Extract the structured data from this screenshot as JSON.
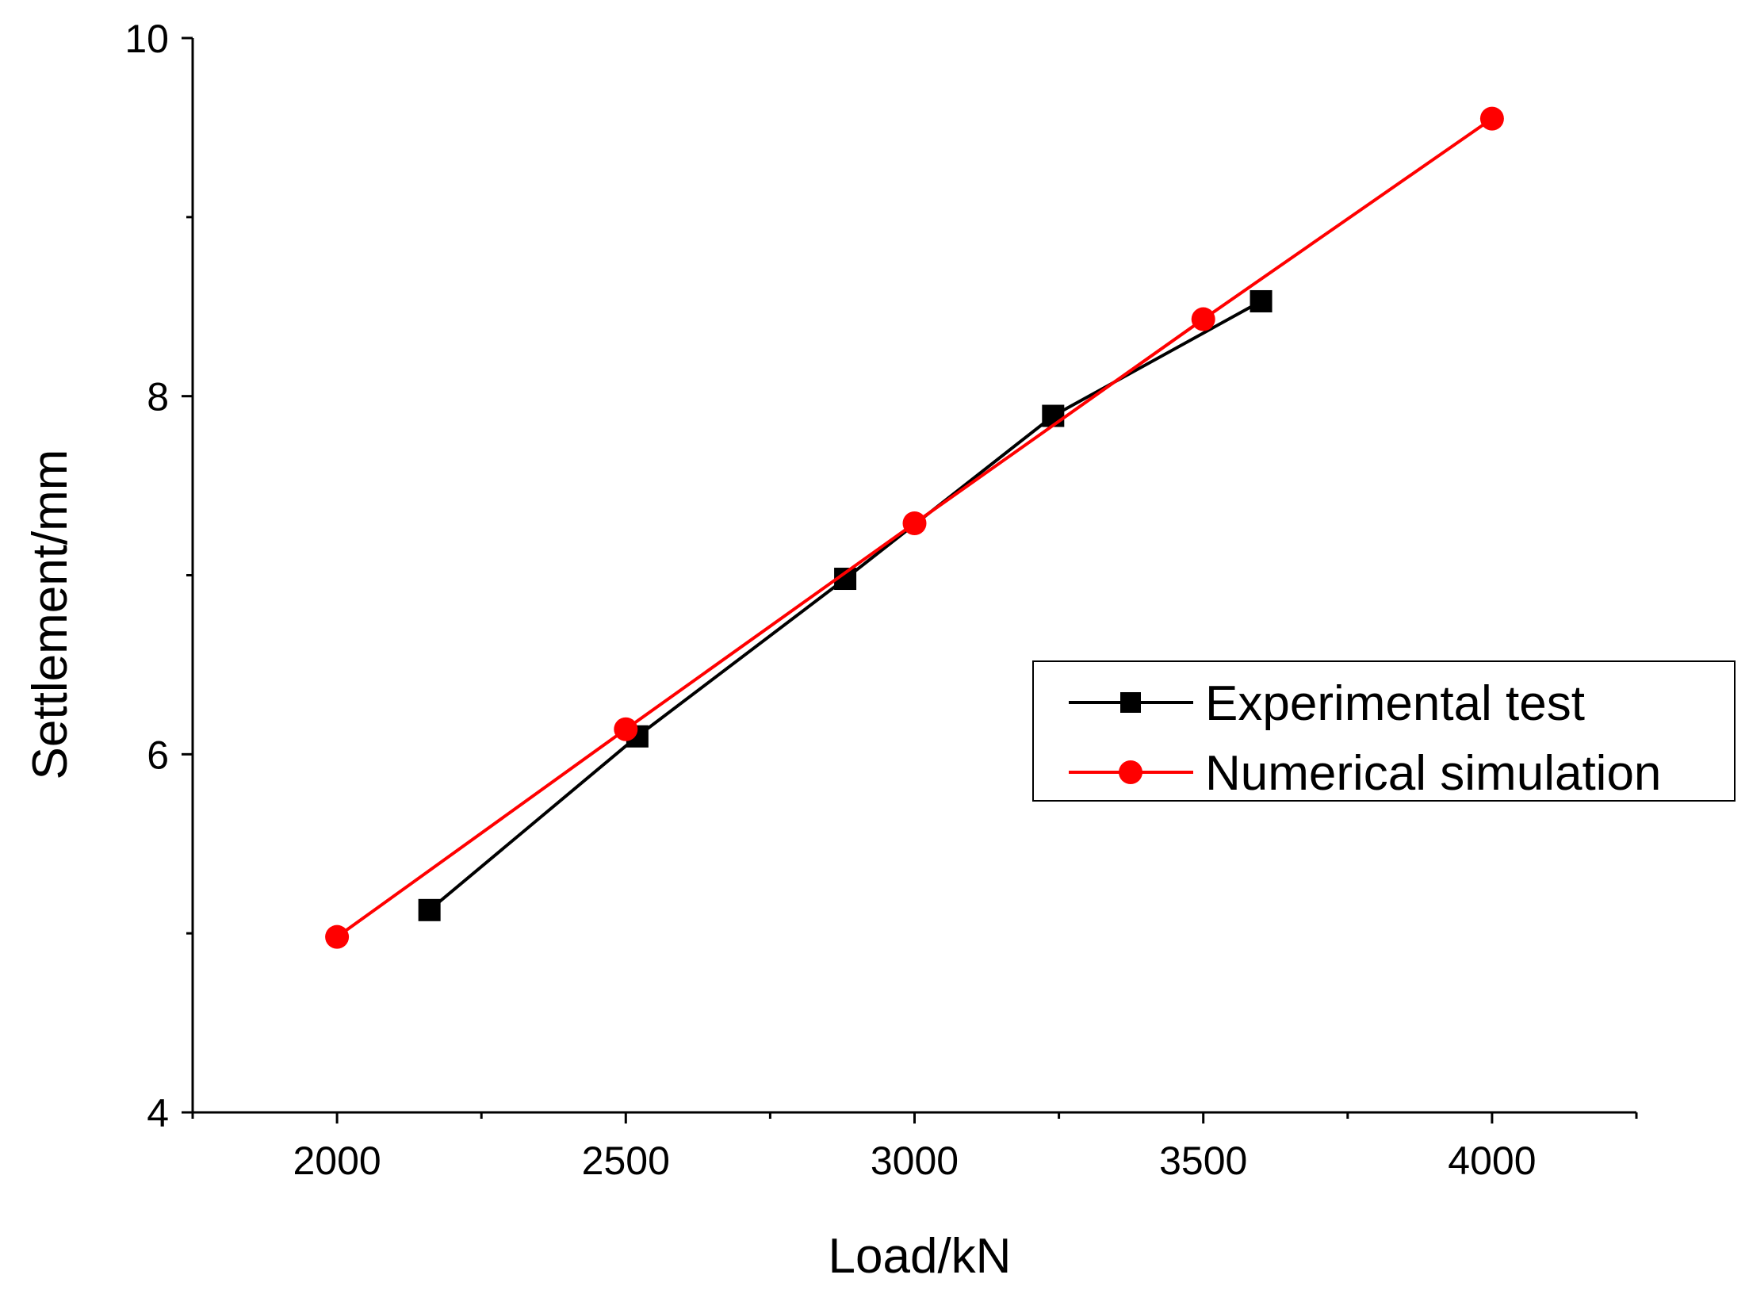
{
  "chart_data": {
    "type": "line",
    "xlabel": "Load/kN",
    "ylabel": "Settlement/mm",
    "xlim": [
      1750,
      4250
    ],
    "ylim": [
      4,
      10
    ],
    "x_ticks": [
      2000,
      2500,
      3000,
      3500,
      4000
    ],
    "x_tick_labels": [
      "2000",
      "2500",
      "3000",
      "3500",
      "4000"
    ],
    "x_minor_ticks": [
      1750,
      2250,
      2750,
      3250,
      3750,
      4250
    ],
    "y_ticks": [
      4,
      6,
      8,
      10
    ],
    "y_tick_labels": [
      "4",
      "6",
      "8",
      "10"
    ],
    "y_minor_ticks": [
      5,
      7,
      9
    ],
    "grid": false,
    "legend_position": "center-right",
    "series": [
      {
        "name": "Experimental test",
        "color": "#000000",
        "marker": "square",
        "x": [
          2160,
          2520,
          2880,
          3240,
          3600
        ],
        "y": [
          5.13,
          6.1,
          6.98,
          7.89,
          8.53
        ]
      },
      {
        "name": "Numerical simulation",
        "color": "#ff0000",
        "marker": "circle",
        "x": [
          2000,
          2500,
          3000,
          3500,
          4000
        ],
        "y": [
          4.98,
          6.14,
          7.29,
          8.43,
          9.55
        ]
      }
    ]
  }
}
